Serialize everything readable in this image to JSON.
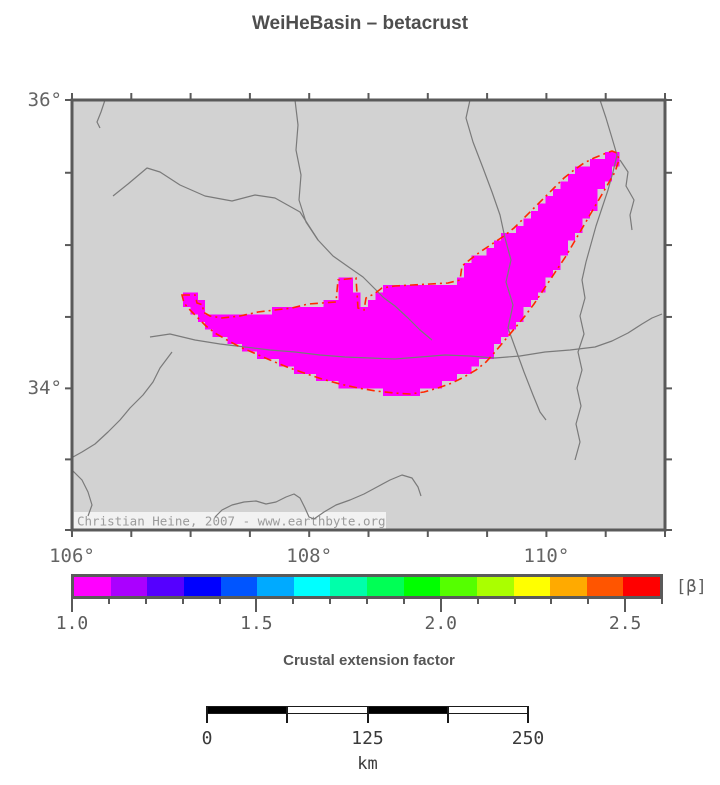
{
  "title": "WeiHeBasin – betacrust",
  "colors": {
    "frame": "#5a5a5a",
    "map_bg": "#d2d2d2",
    "river": "#7a7a7a",
    "basin_fill": "#ff00ff",
    "basin_outline": "#ff2800",
    "axis_text": "#646464",
    "watermark_text": "#9b9b9b",
    "watermark_bg": "#f4f4f4"
  },
  "map": {
    "watermark": "Christian Heine, 2007 - www.earthbyte.org",
    "lon_min": 106,
    "lon_max": 111,
    "lat_min": 33,
    "lat_max": 36,
    "tick_interval_deg": 0.5,
    "x_axis_labels": [
      {
        "value": 106,
        "text": "106°"
      },
      {
        "value": 108,
        "text": "108°"
      },
      {
        "value": 110,
        "text": "110°"
      }
    ],
    "y_axis_labels": [
      {
        "value": 36,
        "text": "36°"
      },
      {
        "value": 34,
        "text": "34°"
      }
    ],
    "rivers": [
      [
        [
          33,
          0
        ],
        [
          29,
          12
        ],
        [
          25,
          22
        ],
        [
          28,
          28
        ]
      ],
      [
        [
          223,
          0
        ],
        [
          226,
          25
        ],
        [
          224,
          50
        ],
        [
          229,
          75
        ],
        [
          227,
          100
        ],
        [
          234,
          122
        ],
        [
          246,
          140
        ],
        [
          261,
          156
        ],
        [
          278,
          168
        ],
        [
          291,
          177
        ],
        [
          302,
          188
        ],
        [
          312,
          198
        ],
        [
          323,
          206
        ],
        [
          336,
          218
        ],
        [
          348,
          230
        ],
        [
          360,
          240
        ]
      ],
      [
        [
          41,
          96
        ],
        [
          56,
          84
        ],
        [
          75,
          68
        ],
        [
          88,
          72
        ],
        [
          108,
          85
        ],
        [
          133,
          96
        ],
        [
          160,
          101
        ],
        [
          183,
          95
        ],
        [
          203,
          98
        ],
        [
          228,
          112
        ],
        [
          246,
          140
        ]
      ],
      [
        [
          78,
          237
        ],
        [
          98,
          234
        ],
        [
          123,
          240
        ],
        [
          148,
          244
        ],
        [
          173,
          247
        ],
        [
          198,
          250
        ],
        [
          223,
          252
        ],
        [
          248,
          255
        ],
        [
          273,
          257
        ],
        [
          298,
          258
        ],
        [
          323,
          259
        ],
        [
          348,
          257
        ],
        [
          373,
          255
        ],
        [
          398,
          256
        ],
        [
          423,
          258
        ],
        [
          448,
          256
        ],
        [
          473,
          252
        ],
        [
          498,
          250
        ],
        [
          523,
          247
        ],
        [
          540,
          241
        ],
        [
          556,
          233
        ],
        [
          570,
          224
        ],
        [
          580,
          218
        ],
        [
          590,
          214
        ]
      ],
      [
        [
          398,
          0
        ],
        [
          394,
          18
        ],
        [
          401,
          42
        ],
        [
          411,
          68
        ],
        [
          420,
          92
        ],
        [
          428,
          115
        ],
        [
          433,
          138
        ],
        [
          439,
          160
        ],
        [
          434,
          182
        ],
        [
          441,
          205
        ],
        [
          436,
          228
        ],
        [
          444,
          250
        ],
        [
          452,
          272
        ],
        [
          461,
          295
        ],
        [
          468,
          312
        ],
        [
          474,
          320
        ]
      ],
      [
        [
          528,
          0
        ],
        [
          534,
          18
        ],
        [
          540,
          38
        ],
        [
          545,
          55
        ],
        [
          541,
          72
        ],
        [
          536,
          90
        ],
        [
          530,
          108
        ],
        [
          524,
          126
        ],
        [
          519,
          144
        ],
        [
          514,
          162
        ],
        [
          510,
          180
        ],
        [
          513,
          198
        ],
        [
          508,
          216
        ],
        [
          512,
          234
        ],
        [
          506,
          252
        ],
        [
          510,
          270
        ],
        [
          505,
          288
        ],
        [
          509,
          306
        ],
        [
          504,
          324
        ],
        [
          508,
          342
        ],
        [
          503,
          360
        ]
      ],
      [
        [
          548,
          60
        ],
        [
          556,
          72
        ],
        [
          554,
          86
        ],
        [
          562,
          100
        ],
        [
          558,
          115
        ],
        [
          560,
          130
        ]
      ],
      [
        [
          100,
          252
        ],
        [
          88,
          268
        ],
        [
          81,
          282
        ],
        [
          71,
          295
        ],
        [
          58,
          308
        ],
        [
          48,
          320
        ],
        [
          36,
          332
        ],
        [
          23,
          344
        ],
        [
          10,
          352
        ],
        [
          1,
          357
        ]
      ],
      [
        [
          0,
          370
        ],
        [
          10,
          380
        ],
        [
          16,
          392
        ],
        [
          20,
          405
        ],
        [
          16,
          416
        ]
      ],
      [
        [
          143,
          417
        ],
        [
          150,
          410
        ],
        [
          160,
          405
        ],
        [
          172,
          402
        ],
        [
          184,
          401
        ],
        [
          194,
          404
        ],
        [
          204,
          402
        ],
        [
          214,
          397
        ],
        [
          222,
          394
        ],
        [
          228,
          398
        ],
        [
          233,
          408
        ],
        [
          237,
          417
        ],
        [
          242,
          419
        ],
        [
          252,
          412
        ],
        [
          264,
          405
        ],
        [
          278,
          400
        ],
        [
          292,
          394
        ],
        [
          305,
          387
        ],
        [
          318,
          380
        ],
        [
          330,
          375
        ],
        [
          340,
          378
        ],
        [
          346,
          387
        ],
        [
          349,
          396
        ]
      ]
    ],
    "basin_outline": [
      [
        110,
        195
      ],
      [
        123,
        195
      ],
      [
        125,
        203
      ],
      [
        131,
        205
      ],
      [
        131,
        212
      ],
      [
        138,
        216
      ],
      [
        150,
        218
      ],
      [
        168,
        216
      ],
      [
        186,
        212
      ],
      [
        203,
        210
      ],
      [
        220,
        208
      ],
      [
        236,
        204
      ],
      [
        250,
        203
      ],
      [
        264,
        202
      ],
      [
        266,
        180
      ],
      [
        284,
        178
      ],
      [
        286,
        208
      ],
      [
        292,
        210
      ],
      [
        294,
        198
      ],
      [
        302,
        194
      ],
      [
        310,
        188
      ],
      [
        323,
        186
      ],
      [
        340,
        185
      ],
      [
        358,
        184
      ],
      [
        376,
        183
      ],
      [
        388,
        180
      ],
      [
        390,
        166
      ],
      [
        400,
        158
      ],
      [
        408,
        152
      ],
      [
        420,
        144
      ],
      [
        432,
        136
      ],
      [
        442,
        128
      ],
      [
        452,
        118
      ],
      [
        462,
        108
      ],
      [
        472,
        98
      ],
      [
        482,
        88
      ],
      [
        492,
        78
      ],
      [
        502,
        70
      ],
      [
        512,
        63
      ],
      [
        522,
        58
      ],
      [
        532,
        54
      ],
      [
        540,
        51
      ],
      [
        545,
        53
      ],
      [
        547,
        60
      ],
      [
        543,
        72
      ],
      [
        536,
        84
      ],
      [
        529,
        96
      ],
      [
        522,
        108
      ],
      [
        515,
        120
      ],
      [
        508,
        132
      ],
      [
        501,
        144
      ],
      [
        494,
        156
      ],
      [
        486,
        168
      ],
      [
        478,
        180
      ],
      [
        470,
        192
      ],
      [
        462,
        204
      ],
      [
        453,
        216
      ],
      [
        443,
        228
      ],
      [
        433,
        240
      ],
      [
        423,
        252
      ],
      [
        414,
        262
      ],
      [
        404,
        270
      ],
      [
        392,
        277
      ],
      [
        380,
        283
      ],
      [
        366,
        288
      ],
      [
        352,
        292
      ],
      [
        338,
        294
      ],
      [
        322,
        293
      ],
      [
        304,
        291
      ],
      [
        286,
        288
      ],
      [
        268,
        284
      ],
      [
        250,
        279
      ],
      [
        232,
        273
      ],
      [
        215,
        267
      ],
      [
        198,
        260
      ],
      [
        182,
        253
      ],
      [
        168,
        247
      ],
      [
        155,
        240
      ],
      [
        143,
        233
      ],
      [
        134,
        226
      ],
      [
        126,
        218
      ],
      [
        118,
        210
      ],
      [
        112,
        203
      ]
    ]
  },
  "colorbar": {
    "unit_label": "[β]",
    "caption": "Crustal extension factor",
    "min": 1.0,
    "max": 2.6,
    "interval": 0.1,
    "colors": [
      "#ff00ff",
      "#aa00ff",
      "#5500ff",
      "#0000ff",
      "#0055ff",
      "#00aaff",
      "#00ffff",
      "#00ffaa",
      "#00ff55",
      "#00ff00",
      "#55ff00",
      "#aaff00",
      "#ffff00",
      "#ffaa00",
      "#ff5500",
      "#ff0000"
    ],
    "major_ticks": [
      {
        "value": 1.0,
        "text": "1.0"
      },
      {
        "value": 1.5,
        "text": "1.5"
      },
      {
        "value": 2.0,
        "text": "2.0"
      },
      {
        "value": 2.5,
        "text": "2.5"
      }
    ]
  },
  "scalebar": {
    "total_km": 250,
    "segments": 4,
    "tick_labels": [
      {
        "km": 0,
        "text": "0"
      },
      {
        "km": 125,
        "text": "125"
      },
      {
        "km": 250,
        "text": "250"
      }
    ],
    "unit": "km"
  }
}
